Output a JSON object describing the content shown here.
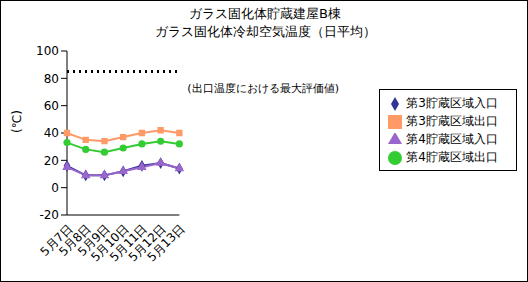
{
  "chart_data": {
    "type": "line",
    "title": "ガラス固化体貯蔵建屋B棟\nガラス固化体冷却空気温度（日平均）",
    "y_label": "(℃)",
    "categories": [
      "5月7日",
      "5月8日",
      "5月9日",
      "5月10日",
      "5月11日",
      "5月12日",
      "5月13日"
    ],
    "series": [
      {
        "name": "第3貯蔵区域入口",
        "color": "#333399",
        "marker": "diamond",
        "values": [
          16,
          9,
          9,
          12,
          16,
          18,
          14
        ]
      },
      {
        "name": "第3貯蔵区域出口",
        "color": "#ff9966",
        "marker": "square",
        "values": [
          40,
          35,
          34,
          37,
          40,
          42,
          40
        ]
      },
      {
        "name": "第4貯蔵区域入口",
        "color": "#9966cc",
        "marker": "triangle",
        "values": [
          15,
          9,
          9,
          12,
          15,
          18,
          14
        ]
      },
      {
        "name": "第4貯蔵区域出口",
        "color": "#33cc33",
        "marker": "circle",
        "values": [
          33,
          28,
          26,
          29,
          32,
          34,
          32
        ]
      }
    ],
    "reference_line": {
      "value": 85,
      "label": "(出口温度における最大評価値)",
      "color": "#000000",
      "line_style": "dotted"
    },
    "ylim": [
      -20,
      100
    ],
    "yticks": [
      -20,
      0,
      20,
      40,
      60,
      80,
      100
    ],
    "grid": false,
    "legend": "right"
  }
}
